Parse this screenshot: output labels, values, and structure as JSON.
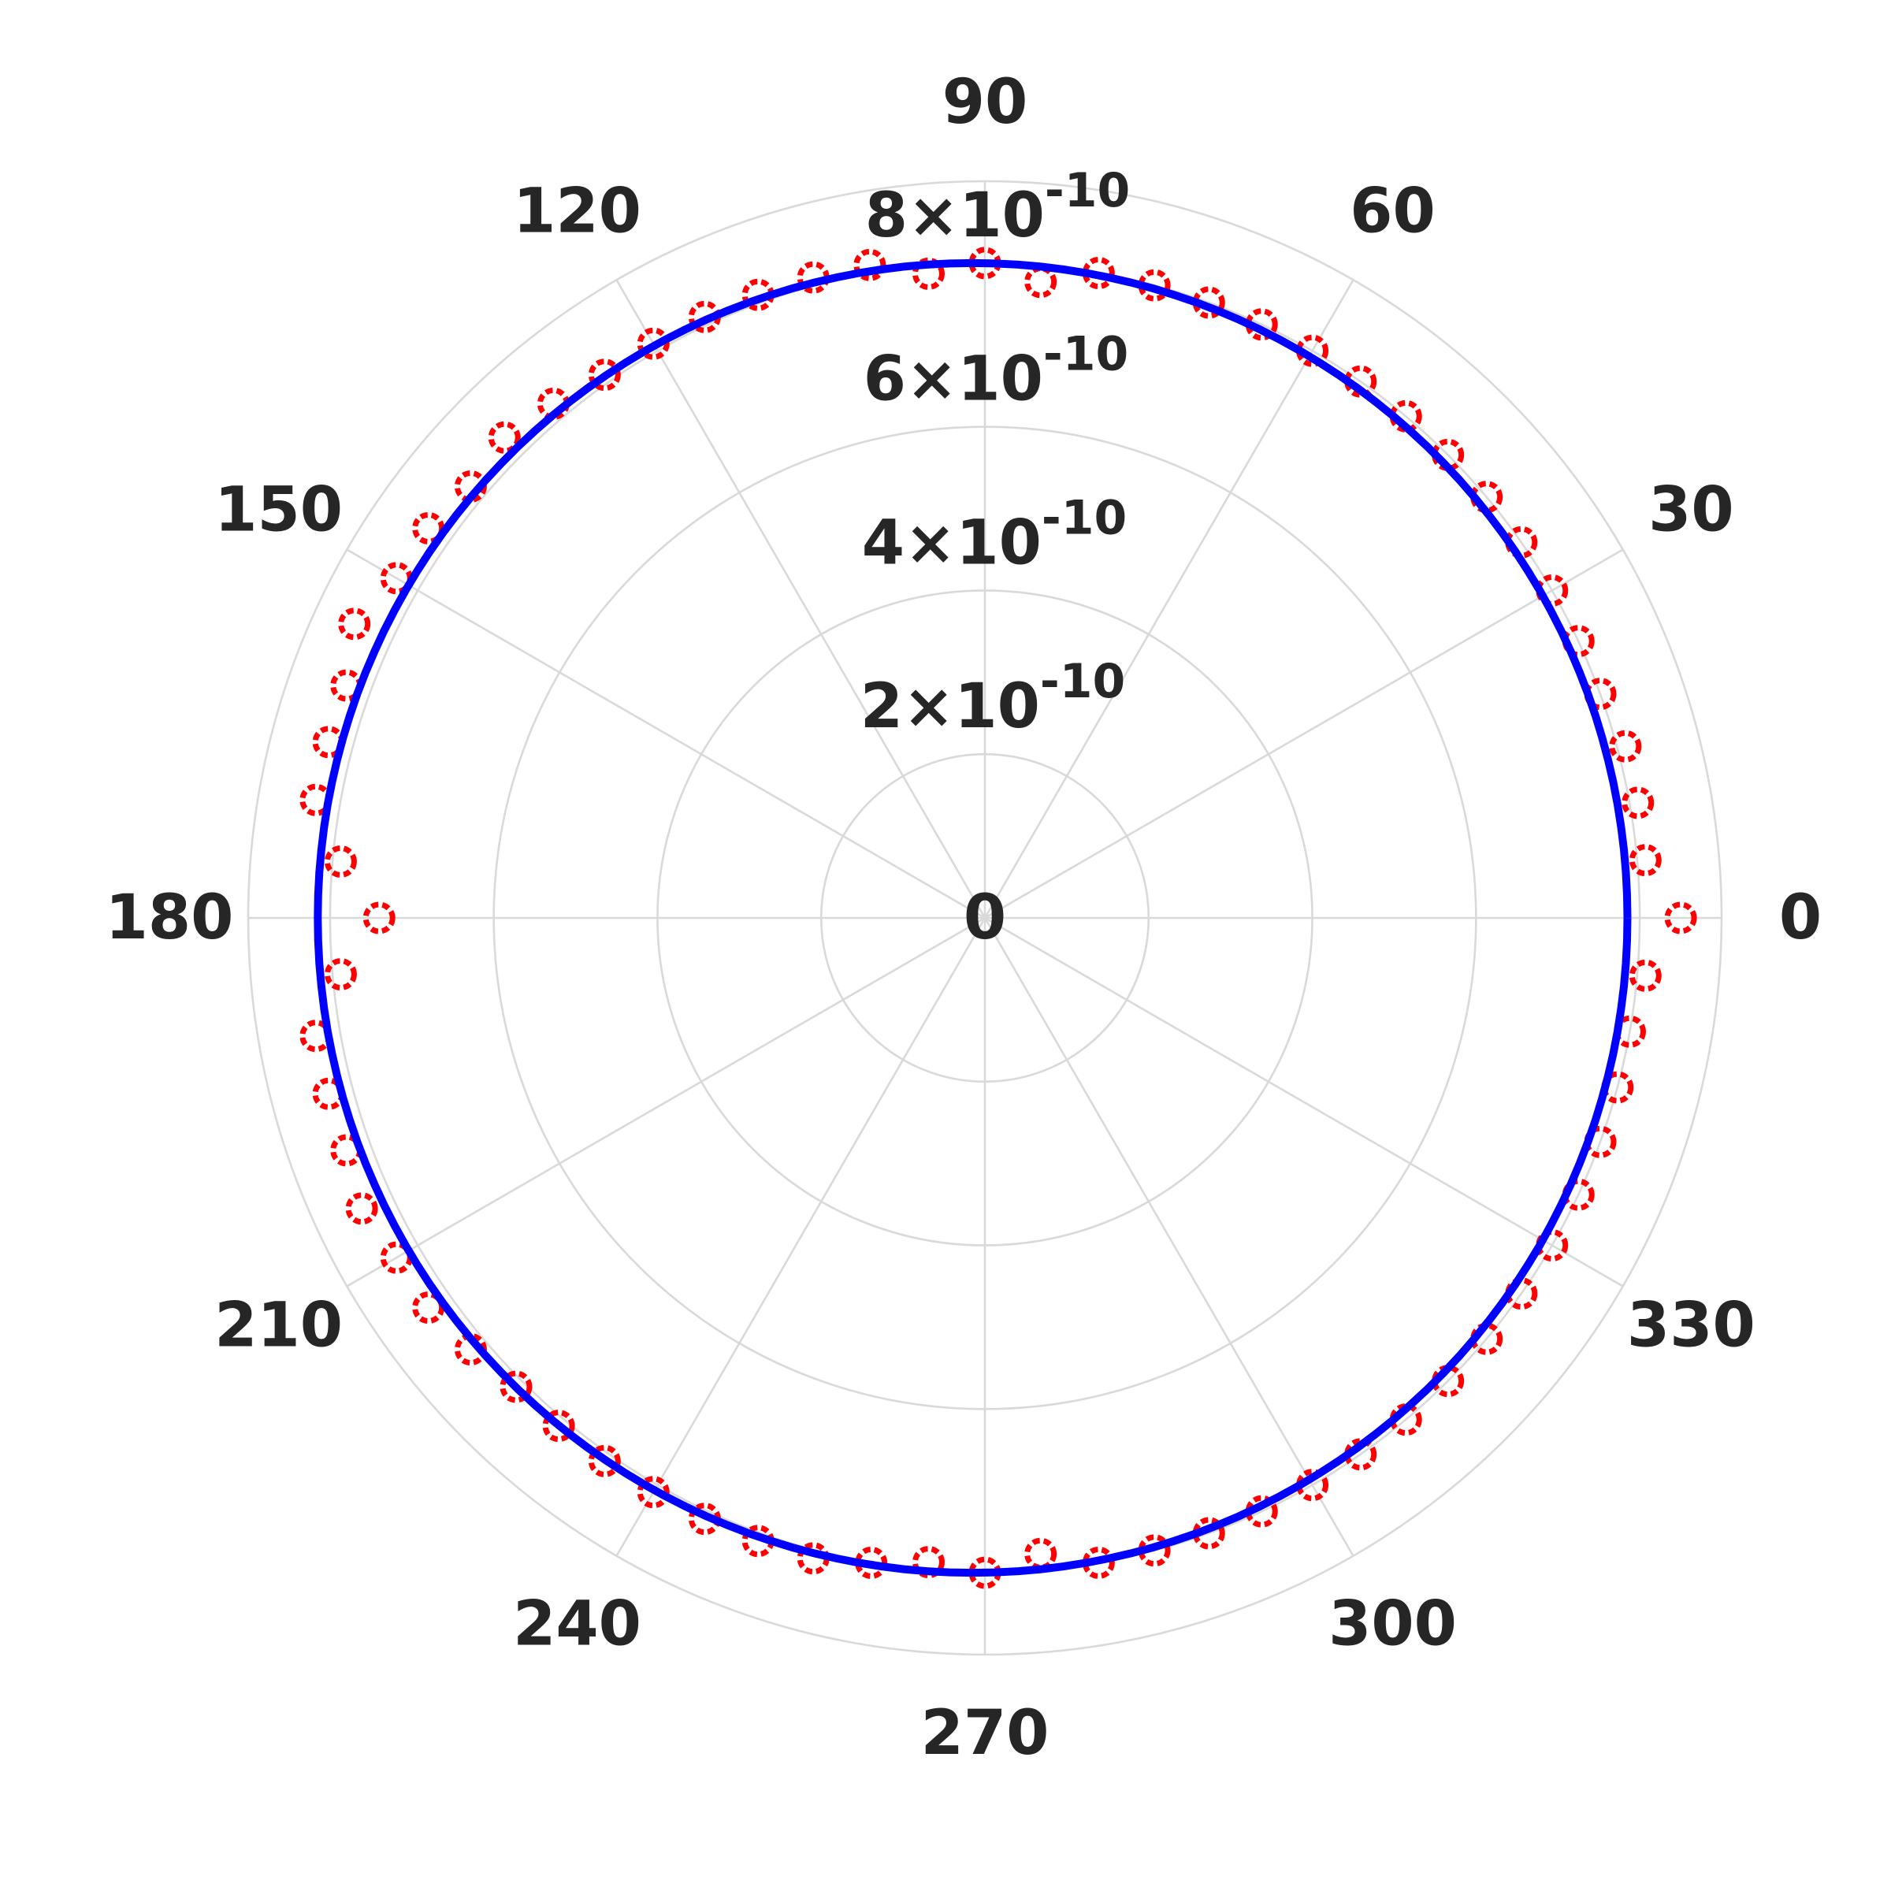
{
  "chart_data": {
    "type": "polar",
    "title": "",
    "angle_unit": "degrees",
    "angle_ticks": [
      "0",
      "30",
      "60",
      "90",
      "120",
      "150",
      "180",
      "210",
      "240",
      "270",
      "300",
      "330"
    ],
    "radial_ticks": [
      {
        "value": 0,
        "mantissa": "0",
        "exponent": ""
      },
      {
        "value": 2e-10,
        "mantissa": "2×10",
        "exponent": "-10"
      },
      {
        "value": 4e-10,
        "mantissa": "4×10",
        "exponent": "-10"
      },
      {
        "value": 6e-10,
        "mantissa": "6×10",
        "exponent": "-10"
      },
      {
        "value": 8e-10,
        "mantissa": "8×10",
        "exponent": "-10"
      }
    ],
    "rlim": [
      0,
      9e-10
    ],
    "grid": true,
    "series": [
      {
        "style": "circle-markers",
        "color": "#ff0000",
        "theta_deg": [
          0,
          5,
          10,
          15,
          20,
          25,
          30,
          35,
          40,
          45,
          50,
          55,
          60,
          65,
          70,
          75,
          80,
          85,
          90,
          95,
          100,
          105,
          110,
          115,
          120,
          125,
          130,
          135,
          140,
          145,
          150,
          155,
          160,
          165,
          170,
          175,
          180,
          185,
          190,
          195,
          200,
          205,
          210,
          215,
          220,
          225,
          230,
          235,
          240,
          245,
          250,
          255,
          260,
          265,
          270,
          275,
          280,
          285,
          290,
          295,
          300,
          305,
          310,
          315,
          320,
          325,
          330,
          335,
          340,
          345,
          350,
          355
        ],
        "r": [
          8.5e-10,
          8.1e-10,
          8.1e-10,
          8.1e-10,
          8e-10,
          8e-10,
          8e-10,
          8e-10,
          8e-10,
          8e-10,
          8e-10,
          8e-10,
          8e-10,
          8e-10,
          8e-10,
          8e-10,
          8e-10,
          7.8e-10,
          8e-10,
          7.9e-10,
          8.1e-10,
          8.1e-10,
          8.1e-10,
          8.1e-10,
          8.1e-10,
          8.1e-10,
          8.2e-10,
          8.3e-10,
          8.2e-10,
          8.3e-10,
          8.3e-10,
          8.5e-10,
          8.3e-10,
          8.3e-10,
          8.3e-10,
          7.9e-10,
          7.4e-10,
          7.9e-10,
          8.3e-10,
          8.3e-10,
          8.3e-10,
          8.4e-10,
          8.3e-10,
          8.3e-10,
          8.2e-10,
          8.1e-10,
          8.1e-10,
          8.1e-10,
          8.1e-10,
          8.1e-10,
          8.1e-10,
          8.1e-10,
          8e-10,
          7.9e-10,
          8e-10,
          7.8e-10,
          8e-10,
          8e-10,
          8e-10,
          8e-10,
          8e-10,
          8e-10,
          8e-10,
          8e-10,
          8e-10,
          8e-10,
          8e-10,
          8e-10,
          8e-10,
          8e-10,
          8e-10,
          8.1e-10
        ]
      },
      {
        "style": "line",
        "color": "#0000ff",
        "center": [
          -1.5e-11,
          0
        ],
        "radius": 8e-10
      }
    ]
  }
}
